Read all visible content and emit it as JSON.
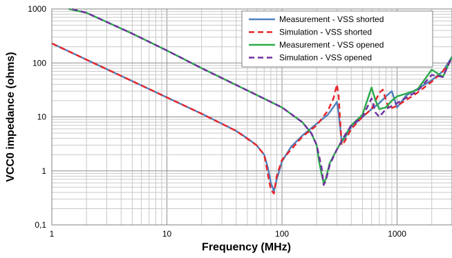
{
  "chart_data": {
    "type": "line",
    "xlabel": "Frequency (MHz)",
    "ylabel": "VCC0 impedance (ohms)",
    "xscale": "log",
    "yscale": "log",
    "xlim": [
      1,
      3000
    ],
    "ylim": [
      0.1,
      1000
    ],
    "x_tick_labels": [
      "1",
      "10",
      "100",
      "1000"
    ],
    "y_tick_labels": [
      "0,1",
      "1",
      "10",
      "100",
      "1000"
    ],
    "grid": true,
    "legend_position": "top-right",
    "series": [
      {
        "name": "Measurement - VSS shorted",
        "color": "#4f81bd",
        "dash": "solid",
        "points": [
          [
            1,
            230
          ],
          [
            2,
            115
          ],
          [
            5,
            46
          ],
          [
            10,
            23
          ],
          [
            20,
            11.5
          ],
          [
            40,
            5.5
          ],
          [
            50,
            4
          ],
          [
            60,
            3
          ],
          [
            70,
            2
          ],
          [
            75,
            1.2
          ],
          [
            80,
            0.6
          ],
          [
            85,
            0.42
          ],
          [
            90,
            0.7
          ],
          [
            100,
            1.5
          ],
          [
            120,
            2.8
          ],
          [
            150,
            4.5
          ],
          [
            200,
            7.5
          ],
          [
            250,
            11
          ],
          [
            290,
            17
          ],
          [
            300,
            19
          ],
          [
            310,
            12
          ],
          [
            330,
            3.5
          ],
          [
            350,
            4
          ],
          [
            400,
            6.5
          ],
          [
            500,
            10
          ],
          [
            600,
            14
          ],
          [
            700,
            18
          ],
          [
            800,
            24
          ],
          [
            900,
            30
          ],
          [
            1000,
            15
          ],
          [
            1200,
            25
          ],
          [
            1500,
            33
          ],
          [
            2000,
            48
          ],
          [
            2500,
            70
          ],
          [
            3000,
            130
          ]
        ]
      },
      {
        "name": "Simulation - VSS shorted",
        "color": "#e8262a",
        "dash": "dashed",
        "points": [
          [
            1,
            230
          ],
          [
            2,
            115
          ],
          [
            5,
            46
          ],
          [
            10,
            23
          ],
          [
            20,
            11.5
          ],
          [
            40,
            5.5
          ],
          [
            60,
            3
          ],
          [
            70,
            2
          ],
          [
            80,
            0.45
          ],
          [
            85,
            0.38
          ],
          [
            90,
            0.8
          ],
          [
            100,
            1.6
          ],
          [
            150,
            4.3
          ],
          [
            200,
            7
          ],
          [
            250,
            13
          ],
          [
            280,
            22
          ],
          [
            300,
            40
          ],
          [
            310,
            25
          ],
          [
            330,
            3
          ],
          [
            350,
            3.5
          ],
          [
            400,
            6
          ],
          [
            500,
            10
          ],
          [
            600,
            14
          ],
          [
            700,
            28
          ],
          [
            750,
            32
          ],
          [
            850,
            14
          ],
          [
            1000,
            16
          ],
          [
            1500,
            28
          ],
          [
            2000,
            45
          ],
          [
            2500,
            70
          ],
          [
            3000,
            120
          ]
        ]
      },
      {
        "name": "Measurement - VSS opened",
        "color": "#2aaa4a",
        "dash": "solid",
        "points": [
          [
            1.4,
            1000
          ],
          [
            2,
            850
          ],
          [
            5,
            350
          ],
          [
            10,
            170
          ],
          [
            20,
            80
          ],
          [
            50,
            31
          ],
          [
            100,
            15
          ],
          [
            150,
            8
          ],
          [
            180,
            5
          ],
          [
            200,
            3
          ],
          [
            210,
            1.5
          ],
          [
            220,
            0.9
          ],
          [
            230,
            0.6
          ],
          [
            240,
            0.7
          ],
          [
            260,
            1.4
          ],
          [
            300,
            2.5
          ],
          [
            350,
            4.3
          ],
          [
            400,
            7
          ],
          [
            500,
            11
          ],
          [
            600,
            35
          ],
          [
            650,
            20
          ],
          [
            700,
            14
          ],
          [
            800,
            15
          ],
          [
            900,
            20
          ],
          [
            1000,
            24
          ],
          [
            1200,
            27
          ],
          [
            1500,
            32
          ],
          [
            2000,
            75
          ],
          [
            2500,
            55
          ],
          [
            3000,
            130
          ]
        ]
      },
      {
        "name": "Simulation - VSS opened",
        "color": "#7030a0",
        "dash": "dashed",
        "points": [
          [
            1.5,
            1000
          ],
          [
            2,
            850
          ],
          [
            5,
            350
          ],
          [
            10,
            170
          ],
          [
            20,
            80
          ],
          [
            50,
            31
          ],
          [
            100,
            15
          ],
          [
            150,
            8
          ],
          [
            180,
            5
          ],
          [
            200,
            3
          ],
          [
            220,
            1.2
          ],
          [
            230,
            0.55
          ],
          [
            240,
            0.65
          ],
          [
            260,
            1.3
          ],
          [
            300,
            2.5
          ],
          [
            350,
            4.5
          ],
          [
            400,
            7
          ],
          [
            500,
            10
          ],
          [
            600,
            22
          ],
          [
            650,
            12
          ],
          [
            700,
            10
          ],
          [
            800,
            14
          ],
          [
            1000,
            18
          ],
          [
            1500,
            30
          ],
          [
            2000,
            60
          ],
          [
            2500,
            55
          ],
          [
            3000,
            130
          ]
        ]
      }
    ]
  }
}
